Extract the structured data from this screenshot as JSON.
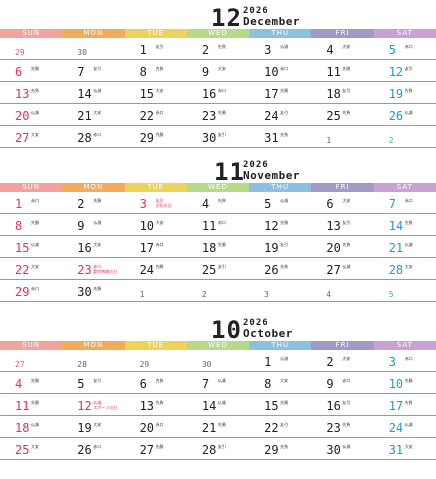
{
  "weekdays": [
    "SUN",
    "MON",
    "TUE",
    "WED",
    "THU",
    "FRI",
    "SAT"
  ],
  "weekday_colors": [
    "#f2a39e",
    "#f2ab5b",
    "#ecd35c",
    "#b6d98a",
    "#8cbfe0",
    "#a399c7",
    "#c9a2d4"
  ],
  "months": [
    {
      "number": "12",
      "year": "2026",
      "name": "December",
      "weeks": [
        [
          {
            "d": "29",
            "out": true
          },
          {
            "d": "30",
            "out": true
          },
          {
            "d": "1",
            "r": "友引"
          },
          {
            "d": "2",
            "r": "先負"
          },
          {
            "d": "3",
            "r": "仏滅"
          },
          {
            "d": "4",
            "r": "大安"
          },
          {
            "d": "5",
            "r": "赤口"
          }
        ],
        [
          {
            "d": "6",
            "r": "先勝"
          },
          {
            "d": "7",
            "r": "友引"
          },
          {
            "d": "8",
            "r": "先負"
          },
          {
            "d": "9",
            "r": "大安"
          },
          {
            "d": "10",
            "r": "赤口"
          },
          {
            "d": "11",
            "r": "先勝"
          },
          {
            "d": "12",
            "r": "友引"
          }
        ],
        [
          {
            "d": "13",
            "r": "先負"
          },
          {
            "d": "14",
            "r": "仏滅"
          },
          {
            "d": "15",
            "r": "大安"
          },
          {
            "d": "16",
            "r": "赤口"
          },
          {
            "d": "17",
            "r": "先勝"
          },
          {
            "d": "18",
            "r": "友引"
          },
          {
            "d": "19",
            "r": "先負"
          }
        ],
        [
          {
            "d": "20",
            "r": "仏滅"
          },
          {
            "d": "21",
            "r": "大安"
          },
          {
            "d": "22",
            "r": "赤口"
          },
          {
            "d": "23",
            "r": "先勝"
          },
          {
            "d": "24",
            "r": "友引"
          },
          {
            "d": "25",
            "r": "先負"
          },
          {
            "d": "26",
            "r": "仏滅"
          }
        ],
        [
          {
            "d": "27",
            "r": "大安"
          },
          {
            "d": "28",
            "r": "赤口"
          },
          {
            "d": "29",
            "r": "先勝"
          },
          {
            "d": "30",
            "r": "友引"
          },
          {
            "d": "31",
            "r": "先負"
          },
          {
            "d": "1",
            "out": true
          },
          {
            "d": "2",
            "out": true
          }
        ]
      ]
    },
    {
      "number": "11",
      "year": "2026",
      "name": "November",
      "weeks": [
        [
          {
            "d": "1",
            "r": "赤口"
          },
          {
            "d": "2",
            "r": "先勝"
          },
          {
            "d": "3",
            "r": "友引",
            "h": "文化の日",
            "red": true
          },
          {
            "d": "4",
            "r": "先負"
          },
          {
            "d": "5",
            "r": "仏滅"
          },
          {
            "d": "6",
            "r": "大安"
          },
          {
            "d": "7",
            "r": "赤口"
          }
        ],
        [
          {
            "d": "8",
            "r": "先勝"
          },
          {
            "d": "9",
            "r": "仏滅"
          },
          {
            "d": "10",
            "r": "大安"
          },
          {
            "d": "11",
            "r": "赤口"
          },
          {
            "d": "12",
            "r": "先勝"
          },
          {
            "d": "13",
            "r": "友引"
          },
          {
            "d": "14",
            "r": "先負"
          }
        ],
        [
          {
            "d": "15",
            "r": "仏滅"
          },
          {
            "d": "16",
            "r": "大安"
          },
          {
            "d": "17",
            "r": "赤口"
          },
          {
            "d": "18",
            "r": "先勝"
          },
          {
            "d": "19",
            "r": "友引"
          },
          {
            "d": "20",
            "r": "先負"
          },
          {
            "d": "21",
            "r": "仏滅"
          }
        ],
        [
          {
            "d": "22",
            "r": "大安"
          },
          {
            "d": "23",
            "r": "赤口",
            "h": "勤労感謝の日",
            "red": true
          },
          {
            "d": "24",
            "r": "先勝"
          },
          {
            "d": "25",
            "r": "友引"
          },
          {
            "d": "26",
            "r": "先負"
          },
          {
            "d": "27",
            "r": "仏滅"
          },
          {
            "d": "28",
            "r": "大安"
          }
        ],
        [
          {
            "d": "29",
            "r": "赤口"
          },
          {
            "d": "30",
            "r": "先勝"
          },
          {
            "d": "1",
            "out": true
          },
          {
            "d": "2",
            "out": true
          },
          {
            "d": "3",
            "out": true
          },
          {
            "d": "4",
            "out": true
          },
          {
            "d": "5",
            "out": true
          }
        ]
      ]
    },
    {
      "number": "10",
      "year": "2026",
      "name": "October",
      "weeks": [
        [
          {
            "d": "27",
            "out": true
          },
          {
            "d": "28",
            "out": true
          },
          {
            "d": "29",
            "out": true
          },
          {
            "d": "30",
            "out": true
          },
          {
            "d": "1",
            "r": "仏滅"
          },
          {
            "d": "2",
            "r": "大安"
          },
          {
            "d": "3",
            "r": "赤口"
          }
        ],
        [
          {
            "d": "4",
            "r": "先勝"
          },
          {
            "d": "5",
            "r": "友引"
          },
          {
            "d": "6",
            "r": "先負"
          },
          {
            "d": "7",
            "r": "仏滅"
          },
          {
            "d": "8",
            "r": "大安"
          },
          {
            "d": "9",
            "r": "赤口"
          },
          {
            "d": "10",
            "r": "先勝"
          }
        ],
        [
          {
            "d": "11",
            "r": "先勝"
          },
          {
            "d": "12",
            "r": "仏滅",
            "h": "スポーツの日",
            "red": true
          },
          {
            "d": "13",
            "r": "先負"
          },
          {
            "d": "14",
            "r": "仏滅"
          },
          {
            "d": "15",
            "r": "先勝"
          },
          {
            "d": "16",
            "r": "友引"
          },
          {
            "d": "17",
            "r": "先負"
          }
        ],
        [
          {
            "d": "18",
            "r": "仏滅"
          },
          {
            "d": "19",
            "r": "大安"
          },
          {
            "d": "20",
            "r": "赤口"
          },
          {
            "d": "21",
            "r": "先勝"
          },
          {
            "d": "22",
            "r": "友引"
          },
          {
            "d": "23",
            "r": "先負"
          },
          {
            "d": "24",
            "r": "仏滅"
          }
        ],
        [
          {
            "d": "25",
            "r": "大安"
          },
          {
            "d": "26",
            "r": "赤口"
          },
          {
            "d": "27",
            "r": "先勝"
          },
          {
            "d": "28",
            "r": "友引"
          },
          {
            "d": "29",
            "r": "先負"
          },
          {
            "d": "30",
            "r": "仏滅"
          },
          {
            "d": "31",
            "r": "大安"
          }
        ]
      ]
    }
  ]
}
